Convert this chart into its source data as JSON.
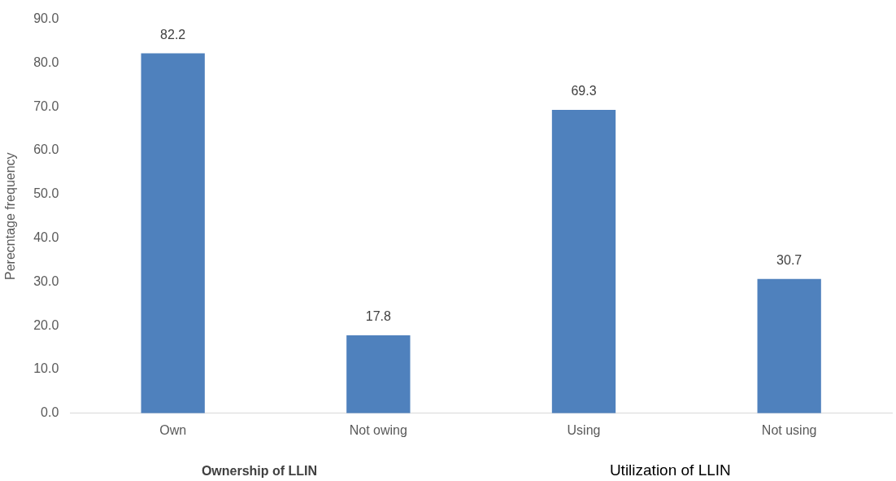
{
  "chart_data": {
    "type": "bar",
    "ylabel": "Perecntage frequency",
    "categories": [
      "Own",
      "Not owing",
      "Using",
      "Not using"
    ],
    "values": [
      82.2,
      17.8,
      69.3,
      30.7
    ],
    "color": "#4f81bd",
    "data_labels": true,
    "grid": false,
    "legend": false,
    "ylim": [
      0,
      90
    ],
    "yticks": [
      {
        "value": 0,
        "label": "0.0"
      },
      {
        "value": 10,
        "label": "10.0"
      },
      {
        "value": 20,
        "label": "20.0"
      },
      {
        "value": 30,
        "label": "30.0"
      },
      {
        "value": 40,
        "label": "40.0"
      },
      {
        "value": 50,
        "label": "50.0"
      },
      {
        "value": 60,
        "label": "60.0"
      },
      {
        "value": 70,
        "label": "70.0"
      },
      {
        "value": 80,
        "label": "80.0"
      },
      {
        "value": 90,
        "label": "90.0"
      }
    ],
    "annotations": [
      "Ownership of LLIN",
      "Utilization of LLIN"
    ]
  }
}
